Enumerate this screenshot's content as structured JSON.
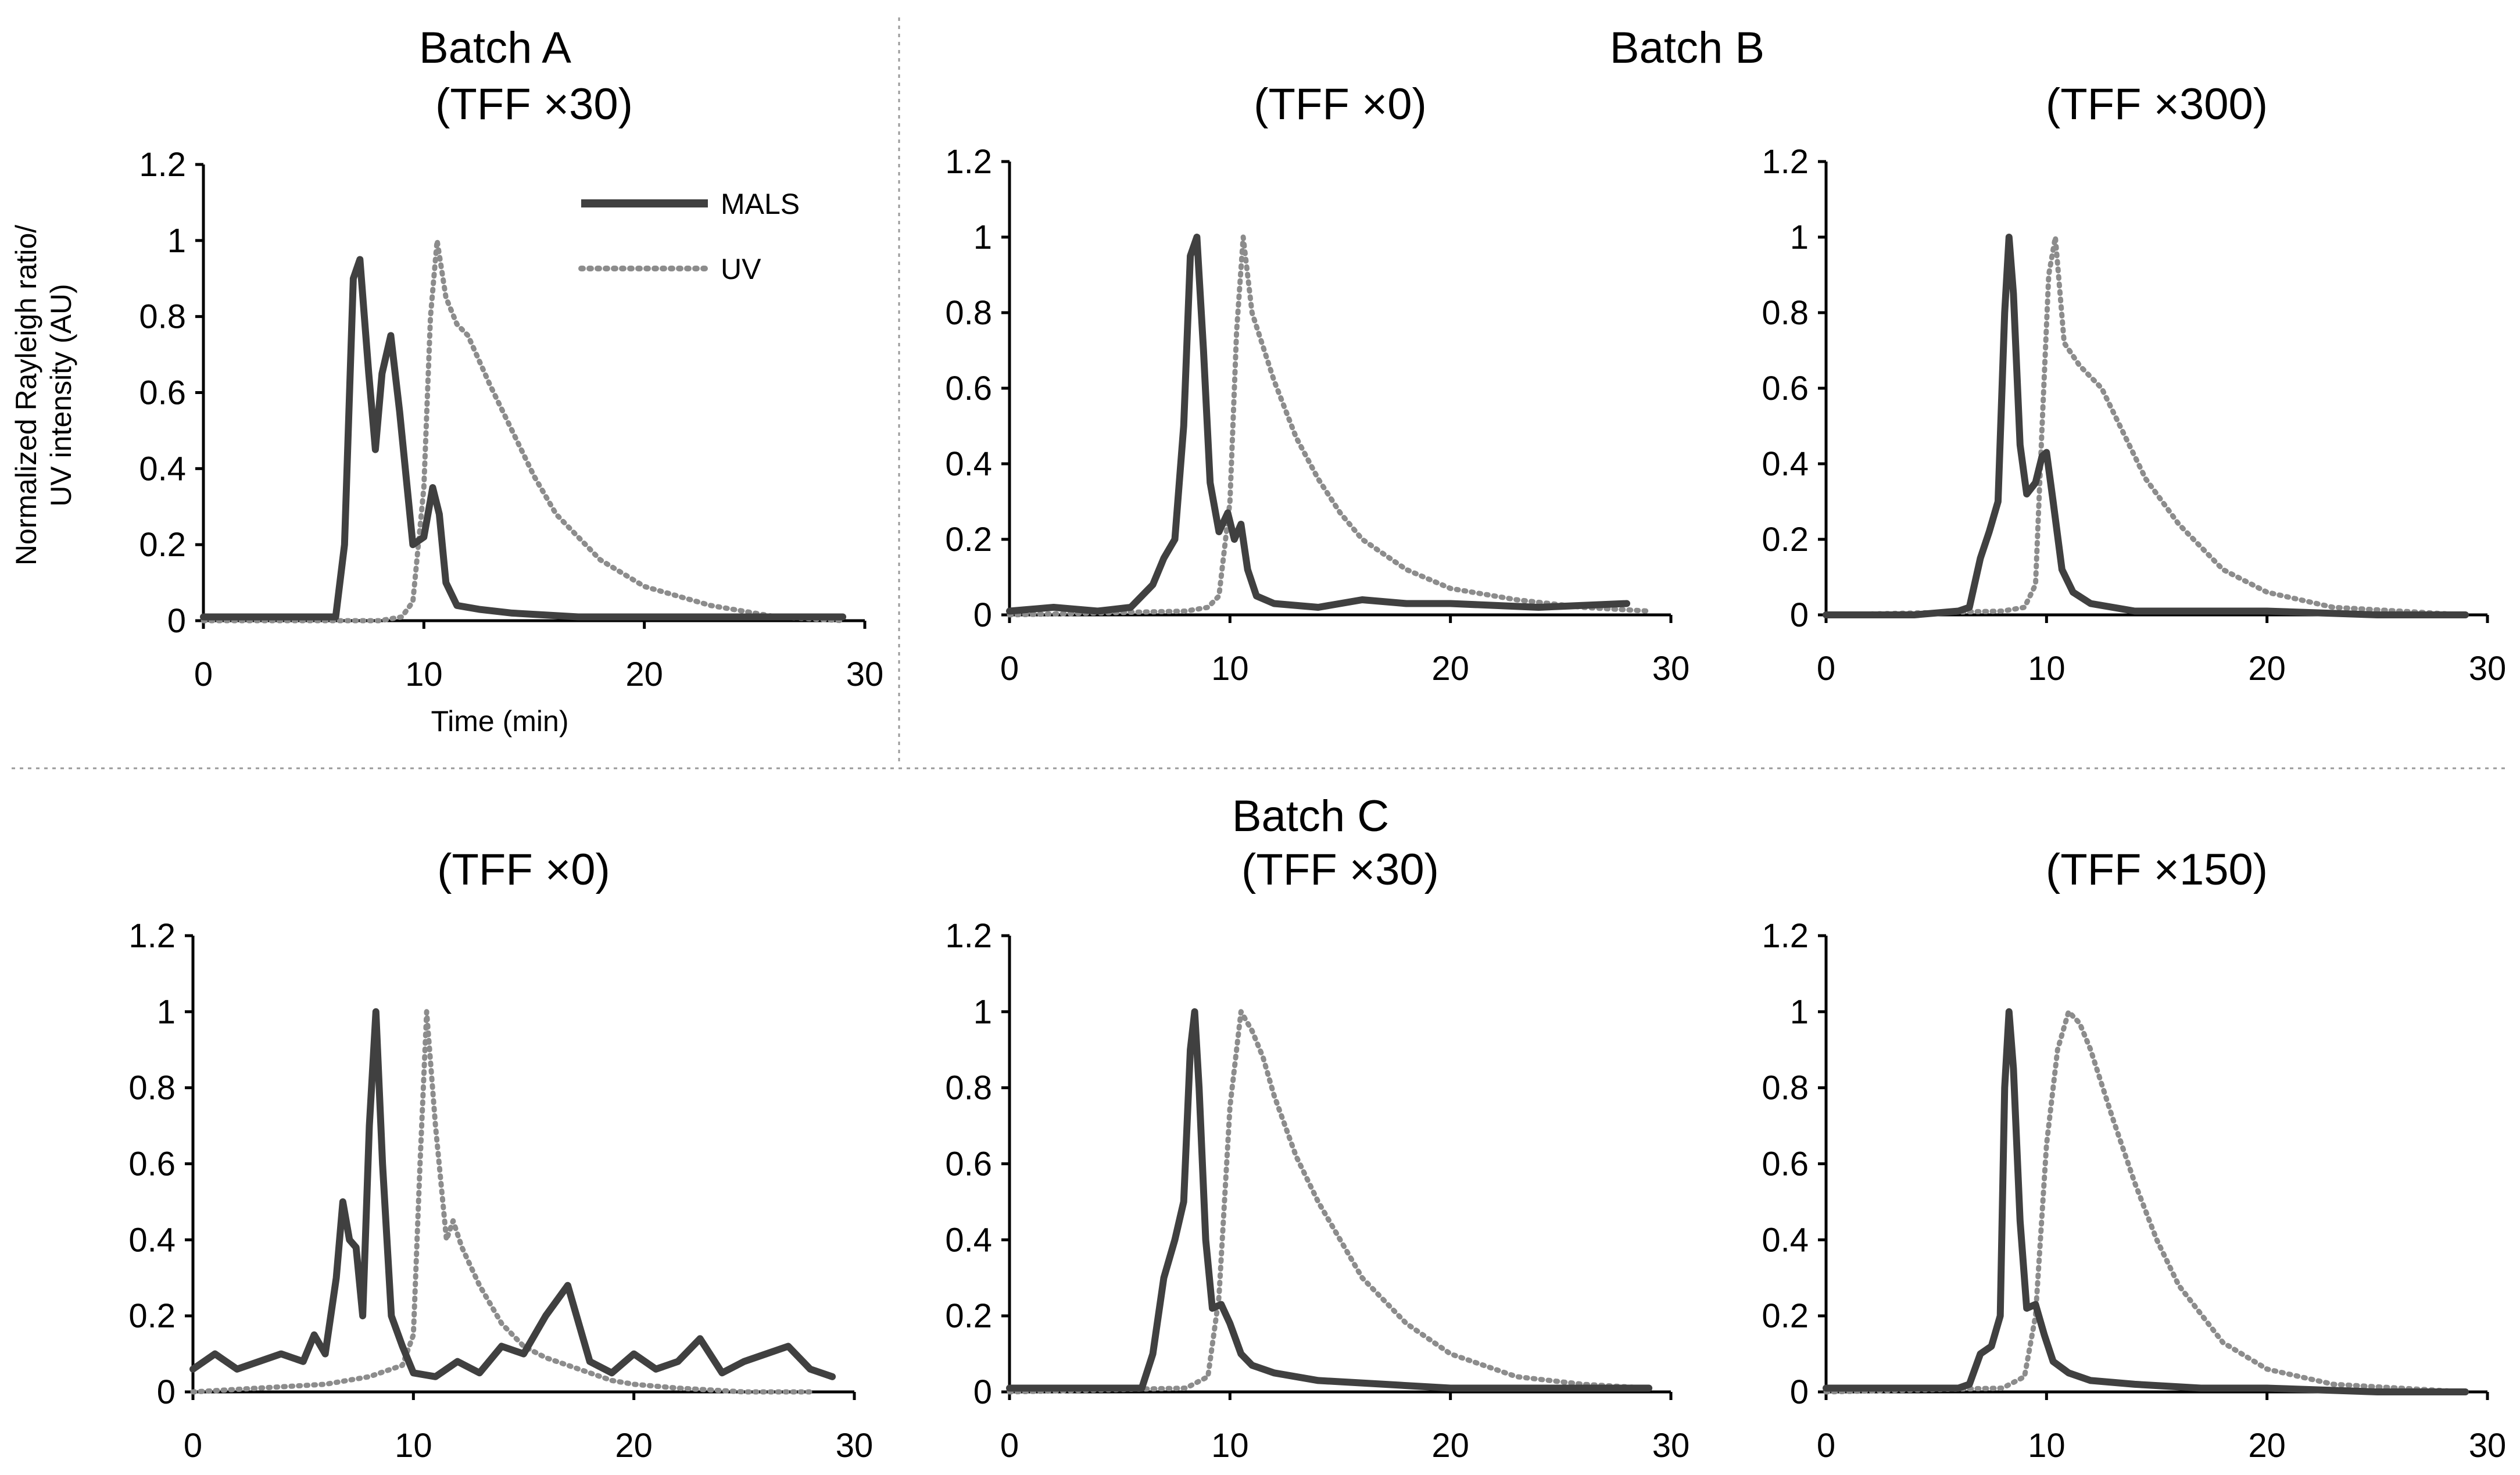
{
  "figure": {
    "group_titles": {
      "batch_a": "Batch A",
      "batch_b": "Batch B",
      "batch_c": "Batch C"
    },
    "y_axis_label": [
      "Normalized Rayleigh ratio/",
      "UV intensity (AU)"
    ],
    "x_axis_label": "Time (min)",
    "legend": {
      "mals": "MALS",
      "uv": "UV"
    },
    "colors": {
      "mals": "#404040",
      "uv": "#8c8c8c",
      "axis": "#000000",
      "separator": "#9a9a9a"
    }
  },
  "chart_data": [
    {
      "type": "line",
      "title": "(TFF ×30)",
      "ylim": [
        0,
        1.2
      ],
      "xlim": [
        0,
        30
      ],
      "yticks": [
        "0",
        "0.2",
        "0.4",
        "0.6",
        "0.8",
        "1",
        "1.2"
      ],
      "xticks": [
        "0",
        "10",
        "20",
        "30"
      ],
      "series": [
        {
          "name": "MALS",
          "x": [
            0,
            3,
            5,
            6,
            6.4,
            6.8,
            7.1,
            7.5,
            7.8,
            8.1,
            8.5,
            8.9,
            9.5,
            10,
            10.4,
            10.7,
            11,
            11.5,
            12.5,
            14,
            17,
            20,
            25,
            29
          ],
          "y": [
            0.01,
            0.01,
            0.01,
            0.01,
            0.2,
            0.9,
            0.95,
            0.65,
            0.45,
            0.65,
            0.75,
            0.55,
            0.2,
            0.22,
            0.35,
            0.28,
            0.1,
            0.04,
            0.03,
            0.02,
            0.01,
            0.01,
            0.01,
            0.01
          ]
        },
        {
          "name": "UV",
          "x": [
            0,
            8,
            9,
            9.5,
            10,
            10.3,
            10.6,
            11,
            11.5,
            12,
            13,
            14,
            15,
            16,
            18,
            20,
            23,
            26,
            29
          ],
          "y": [
            0,
            0,
            0.01,
            0.05,
            0.35,
            0.8,
            1.0,
            0.85,
            0.78,
            0.75,
            0.62,
            0.5,
            0.38,
            0.28,
            0.16,
            0.09,
            0.04,
            0.01,
            0
          ]
        }
      ]
    },
    {
      "type": "line",
      "title": "(TFF ×0)",
      "ylim": [
        0,
        1.2
      ],
      "xlim": [
        0,
        30
      ],
      "yticks": [
        "0",
        "0.2",
        "0.4",
        "0.6",
        "0.8",
        "1",
        "1.2"
      ],
      "xticks": [
        "0",
        "10",
        "20",
        "30"
      ],
      "series": [
        {
          "name": "MALS",
          "x": [
            0,
            2,
            4,
            5.5,
            6.5,
            7,
            7.5,
            7.9,
            8.2,
            8.5,
            8.8,
            9.1,
            9.5,
            9.9,
            10.2,
            10.5,
            10.8,
            11.2,
            12,
            14,
            16,
            18,
            20,
            24,
            28
          ],
          "y": [
            0.01,
            0.02,
            0.01,
            0.02,
            0.08,
            0.15,
            0.2,
            0.5,
            0.95,
            1.0,
            0.7,
            0.35,
            0.22,
            0.27,
            0.2,
            0.24,
            0.12,
            0.05,
            0.03,
            0.02,
            0.04,
            0.03,
            0.03,
            0.02,
            0.03
          ]
        },
        {
          "name": "UV",
          "x": [
            0,
            8,
            9,
            9.5,
            10,
            10.3,
            10.6,
            11,
            12,
            13,
            14,
            15,
            16,
            18,
            20,
            23,
            26,
            29
          ],
          "y": [
            0,
            0.01,
            0.02,
            0.05,
            0.3,
            0.75,
            1.0,
            0.8,
            0.62,
            0.47,
            0.36,
            0.27,
            0.2,
            0.12,
            0.07,
            0.04,
            0.02,
            0.01
          ]
        }
      ]
    },
    {
      "type": "line",
      "title": "(TFF ×300)",
      "ylim": [
        0,
        1.2
      ],
      "xlim": [
        0,
        30
      ],
      "yticks": [
        "0",
        "0.2",
        "0.4",
        "0.6",
        "0.8",
        "1",
        "1.2"
      ],
      "xticks": [
        "0",
        "10",
        "20",
        "30"
      ],
      "series": [
        {
          "name": "MALS",
          "x": [
            0,
            4,
            6,
            6.5,
            7,
            7.4,
            7.8,
            8.1,
            8.3,
            8.5,
            8.8,
            9.1,
            9.5,
            9.8,
            10,
            10.3,
            10.7,
            11.2,
            12,
            14,
            17,
            20,
            25,
            29
          ],
          "y": [
            0,
            0,
            0.01,
            0.02,
            0.15,
            0.22,
            0.3,
            0.8,
            1.0,
            0.85,
            0.45,
            0.32,
            0.35,
            0.42,
            0.43,
            0.3,
            0.12,
            0.06,
            0.03,
            0.01,
            0.01,
            0.01,
            0,
            0
          ]
        },
        {
          "name": "UV",
          "x": [
            0,
            8,
            9,
            9.5,
            9.8,
            10.1,
            10.4,
            10.8,
            11.5,
            12.5,
            13.5,
            14.5,
            16,
            18,
            20,
            23,
            26,
            29
          ],
          "y": [
            0,
            0.01,
            0.02,
            0.08,
            0.5,
            0.9,
            1.0,
            0.72,
            0.66,
            0.6,
            0.48,
            0.36,
            0.24,
            0.12,
            0.06,
            0.02,
            0.01,
            0
          ]
        }
      ]
    },
    {
      "type": "line",
      "title": "(TFF ×0)",
      "ylim": [
        0,
        1.2
      ],
      "xlim": [
        0,
        30
      ],
      "yticks": [
        "0",
        "0.2",
        "0.4",
        "0.6",
        "0.8",
        "1",
        "1.2"
      ],
      "xticks": [
        "0",
        "10",
        "20",
        "30"
      ],
      "series": [
        {
          "name": "MALS",
          "x": [
            0,
            1,
            2,
            3,
            4,
            5,
            5.5,
            6,
            6.5,
            6.8,
            7.1,
            7.4,
            7.7,
            8,
            8.3,
            8.6,
            9,
            9.5,
            10,
            11,
            12,
            13,
            14,
            15,
            16,
            17,
            18,
            19,
            20,
            21,
            22,
            23,
            24,
            25,
            26,
            27,
            28,
            29
          ],
          "y": [
            0.06,
            0.1,
            0.06,
            0.08,
            0.1,
            0.08,
            0.15,
            0.1,
            0.3,
            0.5,
            0.4,
            0.38,
            0.2,
            0.7,
            1.0,
            0.6,
            0.2,
            0.12,
            0.05,
            0.04,
            0.08,
            0.05,
            0.12,
            0.1,
            0.2,
            0.28,
            0.08,
            0.05,
            0.1,
            0.06,
            0.08,
            0.14,
            0.05,
            0.08,
            0.1,
            0.12,
            0.06,
            0.04
          ]
        },
        {
          "name": "UV",
          "x": [
            0,
            6,
            8,
            9.5,
            10,
            10.3,
            10.6,
            11,
            11.5,
            11.8,
            12.2,
            13,
            14,
            15,
            16,
            17,
            18,
            19,
            20,
            22,
            25,
            28
          ],
          "y": [
            0,
            0.02,
            0.04,
            0.07,
            0.15,
            0.6,
            1.0,
            0.7,
            0.4,
            0.45,
            0.38,
            0.28,
            0.18,
            0.12,
            0.09,
            0.07,
            0.05,
            0.03,
            0.02,
            0.01,
            0,
            0
          ]
        }
      ]
    },
    {
      "type": "line",
      "title": "(TFF ×30)",
      "ylim": [
        0,
        1.2
      ],
      "xlim": [
        0,
        30
      ],
      "yticks": [
        "0",
        "0.2",
        "0.4",
        "0.6",
        "0.8",
        "1",
        "1.2"
      ],
      "xticks": [
        "0",
        "10",
        "20",
        "30"
      ],
      "series": [
        {
          "name": "MALS",
          "x": [
            0,
            3,
            6,
            6.5,
            7,
            7.5,
            7.9,
            8.2,
            8.4,
            8.6,
            8.9,
            9.2,
            9.6,
            10,
            10.5,
            11,
            12,
            14,
            17,
            20,
            25,
            29
          ],
          "y": [
            0.01,
            0.01,
            0.01,
            0.1,
            0.3,
            0.4,
            0.5,
            0.9,
            1.0,
            0.8,
            0.4,
            0.22,
            0.23,
            0.18,
            0.1,
            0.07,
            0.05,
            0.03,
            0.02,
            0.01,
            0.01,
            0.01
          ]
        },
        {
          "name": "UV",
          "x": [
            0,
            8,
            9,
            9.5,
            10,
            10.5,
            11,
            11.5,
            12,
            13,
            14,
            15,
            16,
            18,
            20,
            23,
            26,
            29
          ],
          "y": [
            0,
            0.01,
            0.04,
            0.25,
            0.75,
            1.0,
            0.95,
            0.88,
            0.78,
            0.62,
            0.5,
            0.4,
            0.3,
            0.18,
            0.1,
            0.04,
            0.02,
            0.01
          ]
        }
      ]
    },
    {
      "type": "line",
      "title": "(TFF ×150)",
      "ylim": [
        0,
        1.2
      ],
      "xlim": [
        0,
        30
      ],
      "yticks": [
        "0",
        "0.2",
        "0.4",
        "0.6",
        "0.8",
        "1",
        "1.2"
      ],
      "xticks": [
        "0",
        "10",
        "20",
        "30"
      ],
      "series": [
        {
          "name": "MALS",
          "x": [
            0,
            4,
            6,
            6.5,
            7,
            7.5,
            7.9,
            8.1,
            8.3,
            8.5,
            8.8,
            9.1,
            9.5,
            9.9,
            10.3,
            11,
            12,
            14,
            17,
            20,
            25,
            29
          ],
          "y": [
            0.01,
            0.01,
            0.01,
            0.02,
            0.1,
            0.12,
            0.2,
            0.8,
            1.0,
            0.85,
            0.45,
            0.22,
            0.23,
            0.15,
            0.08,
            0.05,
            0.03,
            0.02,
            0.01,
            0.01,
            0,
            0
          ]
        },
        {
          "name": "UV",
          "x": [
            0,
            8,
            9,
            9.5,
            10,
            10.5,
            11,
            11.5,
            12,
            13,
            14,
            15,
            16,
            18,
            20,
            23,
            26,
            29
          ],
          "y": [
            0,
            0.01,
            0.04,
            0.2,
            0.65,
            0.9,
            1.0,
            0.97,
            0.9,
            0.72,
            0.55,
            0.4,
            0.28,
            0.13,
            0.06,
            0.02,
            0.01,
            0
          ]
        }
      ]
    }
  ]
}
